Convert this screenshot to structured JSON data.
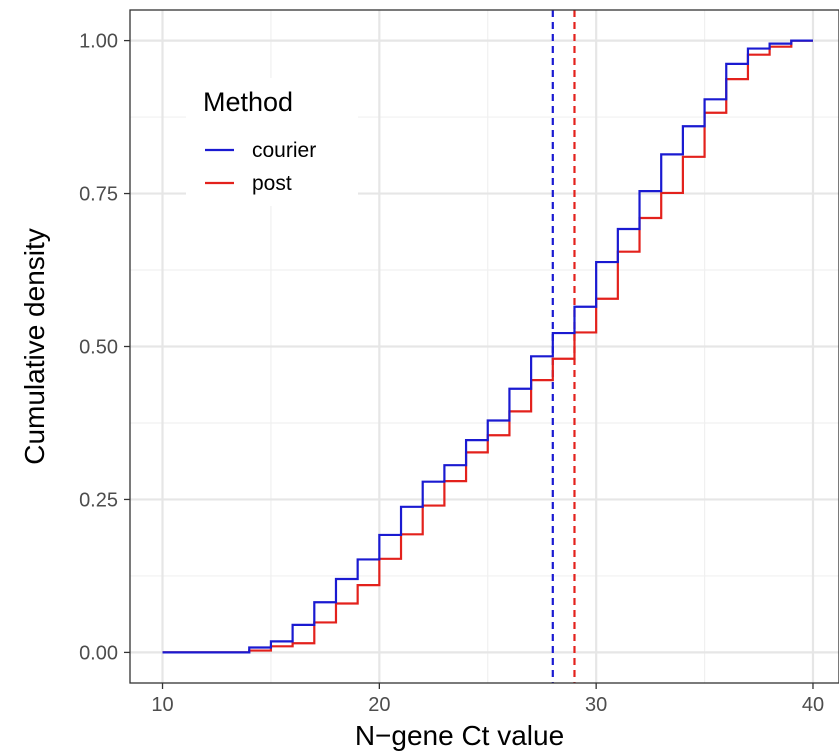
{
  "chart_data": {
    "type": "line",
    "step": true,
    "xlabel": "N−gene Ct value",
    "ylabel": "Cumulative density",
    "xlim": [
      8.5,
      41.2
    ],
    "ylim": [
      -0.05,
      1.05
    ],
    "x_ticks": [
      10,
      20,
      30,
      40
    ],
    "x_tick_labels": [
      "10",
      "20",
      "30",
      "40"
    ],
    "y_ticks": [
      0,
      0.25,
      0.5,
      0.75,
      1
    ],
    "y_tick_labels": [
      "0.00",
      "0.25",
      "0.50",
      "0.75",
      "1.00"
    ],
    "grid": true,
    "legend": {
      "title": "Method",
      "position": "top-left"
    },
    "series": [
      {
        "name": "courier",
        "color": "#1a1ad1",
        "median": 28,
        "x": [
          10,
          14,
          15,
          16,
          17,
          18,
          19,
          20,
          21,
          22,
          23,
          24,
          25,
          26,
          27,
          28,
          29,
          30,
          31,
          32,
          33,
          34,
          35,
          36,
          37,
          38,
          39,
          40
        ],
        "y": [
          0.0,
          0.008,
          0.018,
          0.045,
          0.082,
          0.12,
          0.152,
          0.192,
          0.238,
          0.279,
          0.306,
          0.347,
          0.379,
          0.431,
          0.484,
          0.522,
          0.565,
          0.638,
          0.692,
          0.754,
          0.814,
          0.86,
          0.904,
          0.962,
          0.987,
          0.995,
          1.0,
          1.0
        ]
      },
      {
        "name": "post",
        "color": "#e3211c",
        "median": 29,
        "x": [
          10,
          14,
          15,
          16,
          17,
          18,
          19,
          20,
          21,
          22,
          23,
          24,
          25,
          26,
          27,
          28,
          29,
          30,
          31,
          32,
          33,
          34,
          35,
          36,
          37,
          38,
          39,
          40
        ],
        "y": [
          0.0,
          0.003,
          0.01,
          0.015,
          0.049,
          0.08,
          0.11,
          0.153,
          0.193,
          0.24,
          0.28,
          0.327,
          0.355,
          0.394,
          0.445,
          0.48,
          0.523,
          0.578,
          0.655,
          0.71,
          0.751,
          0.81,
          0.882,
          0.937,
          0.977,
          0.99,
          1.0,
          1.0
        ]
      }
    ]
  }
}
